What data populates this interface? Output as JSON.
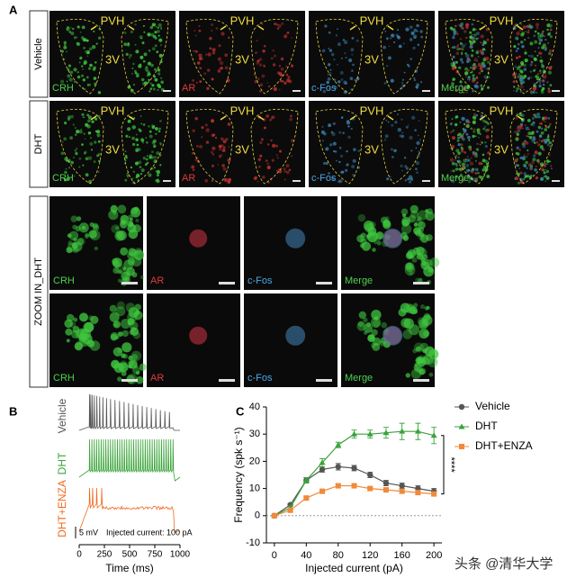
{
  "panel_a": {
    "label": "A",
    "conditions": [
      "Vehicle",
      "DHT"
    ],
    "channels": [
      "CRH",
      "AR",
      "c-Fos",
      "Merge"
    ],
    "region": "PVH",
    "ventricle": "3V",
    "zoom_label": "ZOOM IN_DHT"
  },
  "panel_b": {
    "label": "B",
    "traces": [
      {
        "name": "Vehicle",
        "color": "#555555"
      },
      {
        "name": "DHT",
        "color": "#3aa33a"
      },
      {
        "name": "DHT+ENZA",
        "color": "#f06a1e"
      }
    ],
    "scale_bar": "5 mV",
    "note": "Injected current: 100 pA",
    "xlabel": "Time (ms)",
    "xlim": [
      0,
      1000
    ],
    "xticks": [
      0,
      250,
      500,
      750,
      1000
    ]
  },
  "chart_data": {
    "type": "line",
    "label": "C",
    "xlabel": "Injected current (pA)",
    "ylabel": "Frequency (spk s⁻¹)",
    "x": [
      0,
      20,
      40,
      60,
      80,
      100,
      120,
      140,
      160,
      180,
      200
    ],
    "series": [
      {
        "name": "Vehicle",
        "color": "#555555",
        "marker": "circle",
        "values": [
          0,
          4,
          13,
          17,
          18,
          17.5,
          15,
          12,
          11,
          10,
          9
        ],
        "errors": [
          0.3,
          0.5,
          1,
          1,
          1.2,
          1,
          1,
          1,
          1,
          1,
          1
        ]
      },
      {
        "name": "DHT",
        "color": "#3aa33a",
        "marker": "triangle",
        "values": [
          0,
          3,
          13,
          19.5,
          26,
          30,
          30,
          30.5,
          31,
          31,
          29.5
        ],
        "errors": [
          0.3,
          0.5,
          1,
          1.5,
          1,
          1.5,
          1.5,
          2,
          3,
          3,
          3
        ]
      },
      {
        "name": "DHT+ENZA",
        "color": "#f08a3a",
        "marker": "square",
        "values": [
          0,
          2,
          6.5,
          9,
          11,
          11,
          10,
          9.5,
          9,
          8.5,
          8
        ],
        "errors": [
          0.3,
          0.4,
          0.5,
          0.5,
          0.5,
          0.5,
          0.5,
          0.5,
          0.7,
          0.7,
          0.7
        ]
      }
    ],
    "xlim": [
      -10,
      210
    ],
    "ylim": [
      -10,
      40
    ],
    "xticks": [
      0,
      40,
      80,
      120,
      160,
      200
    ],
    "yticks": [
      -10,
      0,
      10,
      20,
      30,
      40
    ],
    "significance": "****",
    "legend": "right"
  },
  "watermark": "头条 @清华大学"
}
